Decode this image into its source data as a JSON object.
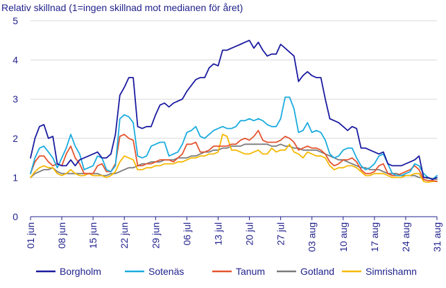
{
  "chart_data": {
    "type": "line",
    "title": "",
    "ylabel": "Relativ skillnad (1=ingen skillnad mot medianen för året)",
    "xlabel": "",
    "ylim": [
      0,
      5
    ],
    "yticks": [
      0,
      1,
      2,
      3,
      4,
      5
    ],
    "grid": "horizontal",
    "legend_position": "bottom",
    "x_tick_labels": [
      "01 jun",
      "08 jun",
      "15 jun",
      "22 jun",
      "29 jun",
      "06 jul",
      "13 jul",
      "20 jul",
      "27 jul",
      "03 aug",
      "10 aug",
      "17 aug",
      "24 aug",
      "31 aug"
    ],
    "x_tick_days": [
      0,
      7,
      14,
      21,
      28,
      35,
      42,
      49,
      56,
      63,
      70,
      77,
      84,
      91
    ],
    "x_days": [
      0,
      1,
      2,
      3,
      4,
      5,
      6,
      7,
      8,
      9,
      10,
      11,
      12,
      13,
      14,
      15,
      16,
      17,
      18,
      19,
      20,
      21,
      22,
      23,
      24,
      25,
      26,
      27,
      28,
      29,
      30,
      31,
      32,
      33,
      34,
      35,
      36,
      37,
      38,
      39,
      40,
      41,
      42,
      43,
      44,
      45,
      46,
      47,
      48,
      49,
      50,
      51,
      52,
      53,
      54,
      55,
      56,
      57,
      58,
      59,
      60,
      61,
      62,
      63,
      64,
      65,
      66,
      67,
      68,
      69,
      70,
      71,
      72,
      73,
      74,
      75,
      76,
      77,
      78,
      79,
      80,
      81,
      82,
      83,
      84,
      85,
      86,
      87,
      88,
      89,
      90,
      91
    ],
    "series": [
      {
        "name": "Borgholm",
        "color": "#1a1aa0",
        "values": [
          1.5,
          2.0,
          2.3,
          2.35,
          2.0,
          2.05,
          1.35,
          1.3,
          1.3,
          1.45,
          1.3,
          1.45,
          1.5,
          1.55,
          1.6,
          1.65,
          1.5,
          1.5,
          1.6,
          2.1,
          3.1,
          3.3,
          3.55,
          3.55,
          2.3,
          2.25,
          2.3,
          2.3,
          2.6,
          2.85,
          2.9,
          2.8,
          2.9,
          2.95,
          3.0,
          3.2,
          3.35,
          3.5,
          3.55,
          3.55,
          3.8,
          3.9,
          3.85,
          4.25,
          4.25,
          4.3,
          4.35,
          4.4,
          4.45,
          4.5,
          4.3,
          4.45,
          4.25,
          4.1,
          4.15,
          4.15,
          4.4,
          4.3,
          4.2,
          4.1,
          3.45,
          3.6,
          3.7,
          3.6,
          3.55,
          3.55,
          3.0,
          2.5,
          2.45,
          2.4,
          2.3,
          2.2,
          2.3,
          2.25,
          1.75,
          1.75,
          1.7,
          1.65,
          1.6,
          1.65,
          1.35,
          1.3,
          1.3,
          1.3,
          1.35,
          1.4,
          1.45,
          1.55,
          1.0,
          1.0,
          0.95,
          1.0
        ]
      },
      {
        "name": "Sotenäs",
        "color": "#1aabdf",
        "values": [
          1.1,
          1.5,
          1.75,
          1.8,
          1.65,
          1.5,
          1.25,
          1.5,
          1.75,
          2.1,
          1.8,
          1.6,
          1.2,
          1.25,
          1.3,
          1.55,
          1.5,
          1.2,
          1.15,
          1.3,
          2.5,
          2.6,
          2.55,
          2.4,
          1.55,
          1.5,
          1.55,
          1.8,
          1.85,
          1.9,
          1.9,
          1.55,
          1.6,
          1.65,
          1.85,
          2.15,
          2.2,
          2.3,
          2.05,
          2.0,
          2.1,
          2.2,
          2.25,
          2.3,
          2.25,
          2.25,
          2.3,
          2.45,
          2.45,
          2.5,
          2.45,
          2.5,
          2.45,
          2.35,
          2.3,
          2.3,
          2.5,
          3.05,
          3.05,
          2.75,
          2.15,
          2.2,
          2.4,
          2.15,
          2.2,
          2.15,
          1.95,
          1.6,
          1.5,
          1.55,
          1.7,
          1.75,
          1.75,
          1.5,
          1.3,
          1.2,
          1.25,
          1.35,
          1.55,
          1.6,
          1.35,
          1.1,
          1.05,
          1.05,
          1.1,
          1.15,
          1.35,
          1.3,
          1.1,
          1.0,
          0.95,
          1.05
        ]
      },
      {
        "name": "Tanum",
        "color": "#e5532e",
        "values": [
          1.1,
          1.4,
          1.55,
          1.55,
          1.4,
          1.3,
          1.35,
          1.3,
          1.6,
          1.8,
          1.5,
          1.35,
          1.1,
          1.1,
          1.1,
          1.3,
          1.35,
          1.15,
          1.15,
          1.35,
          2.05,
          2.1,
          2.0,
          1.95,
          1.3,
          1.3,
          1.35,
          1.35,
          1.4,
          1.45,
          1.45,
          1.45,
          1.4,
          1.5,
          1.6,
          1.85,
          1.85,
          1.9,
          1.65,
          1.65,
          1.7,
          1.8,
          1.8,
          1.8,
          1.8,
          1.85,
          1.85,
          1.95,
          2.0,
          1.95,
          2.05,
          2.2,
          1.95,
          1.9,
          1.9,
          1.9,
          1.95,
          2.05,
          2.0,
          1.9,
          1.7,
          1.75,
          1.8,
          1.75,
          1.75,
          1.7,
          1.6,
          1.4,
          1.3,
          1.35,
          1.45,
          1.45,
          1.5,
          1.4,
          1.2,
          1.1,
          1.1,
          1.15,
          1.3,
          1.35,
          1.1,
          1.05,
          1.05,
          1.1,
          1.15,
          1.2,
          1.3,
          1.2,
          0.95,
          0.92,
          0.92,
          0.9
        ]
      },
      {
        "name": "Gotland",
        "color": "#7a7a7a",
        "values": [
          1.0,
          1.1,
          1.15,
          1.2,
          1.2,
          1.25,
          1.15,
          1.1,
          1.1,
          1.1,
          1.1,
          1.1,
          1.1,
          1.1,
          1.1,
          1.1,
          1.05,
          1.05,
          1.1,
          1.1,
          1.15,
          1.2,
          1.25,
          1.25,
          1.3,
          1.35,
          1.35,
          1.4,
          1.4,
          1.4,
          1.45,
          1.45,
          1.45,
          1.5,
          1.5,
          1.5,
          1.55,
          1.55,
          1.6,
          1.65,
          1.65,
          1.7,
          1.7,
          1.75,
          1.75,
          1.8,
          1.8,
          1.8,
          1.85,
          1.85,
          1.85,
          1.85,
          1.85,
          1.85,
          1.8,
          1.8,
          1.85,
          1.8,
          1.8,
          1.75,
          1.75,
          1.7,
          1.7,
          1.7,
          1.7,
          1.65,
          1.6,
          1.55,
          1.5,
          1.45,
          1.45,
          1.4,
          1.35,
          1.3,
          1.25,
          1.25,
          1.2,
          1.2,
          1.2,
          1.15,
          1.1,
          1.1,
          1.1,
          1.05,
          1.05,
          1.05,
          1.05,
          1.0,
          1.0,
          0.98,
          0.97,
          0.95
        ]
      },
      {
        "name": "Simrishamn",
        "color": "#f5b800",
        "values": [
          1.0,
          1.15,
          1.25,
          1.3,
          1.25,
          1.25,
          1.1,
          1.05,
          1.1,
          1.2,
          1.1,
          1.05,
          1.05,
          1.1,
          1.05,
          1.05,
          1.05,
          1.0,
          1.05,
          1.15,
          1.4,
          1.55,
          1.5,
          1.45,
          1.2,
          1.2,
          1.25,
          1.25,
          1.3,
          1.3,
          1.35,
          1.35,
          1.35,
          1.4,
          1.4,
          1.45,
          1.5,
          1.5,
          1.55,
          1.55,
          1.6,
          1.6,
          1.65,
          2.1,
          2.05,
          1.7,
          1.7,
          1.65,
          1.6,
          1.6,
          1.65,
          1.7,
          1.6,
          1.6,
          1.75,
          1.65,
          1.7,
          1.7,
          1.85,
          1.65,
          1.6,
          1.5,
          1.65,
          1.6,
          1.55,
          1.55,
          1.5,
          1.3,
          1.2,
          1.25,
          1.25,
          1.3,
          1.3,
          1.25,
          1.15,
          1.05,
          1.05,
          1.1,
          1.1,
          1.1,
          1.05,
          1.0,
          1.0,
          1.0,
          1.05,
          1.05,
          1.1,
          1.1,
          0.9,
          0.88,
          0.9,
          0.9
        ]
      }
    ]
  }
}
